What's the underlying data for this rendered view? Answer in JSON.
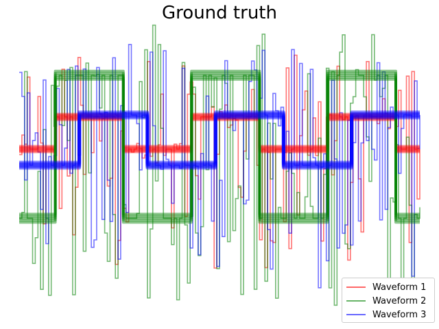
{
  "chart_data": {
    "type": "line",
    "title": "Ground truth",
    "xlabel": "",
    "ylabel": "",
    "axes_visible": false,
    "grid": false,
    "legend_position": "lower-right",
    "x_range": [
      0,
      1
    ],
    "y_range": [
      -1.6,
      1.6
    ],
    "series": [
      {
        "name": "Waveform 1",
        "color": "#ff0000",
        "shape": "square",
        "base_steps": [
          [
            0.0,
            0.17
          ],
          [
            0.09,
            0.51
          ],
          [
            0.26,
            0.17
          ],
          [
            0.43,
            0.51
          ],
          [
            0.6,
            0.17
          ],
          [
            0.77,
            0.51
          ],
          [
            0.94,
            0.17
          ]
        ],
        "base_range": [
          0.17,
          0.51
        ],
        "noisy_spike_range": [
          -1.1,
          1.2
        ]
      },
      {
        "name": "Waveform 2",
        "color": "#008000",
        "shape": "square",
        "base_steps": [
          [
            0.0,
            -0.56
          ],
          [
            0.09,
            0.95
          ],
          [
            0.26,
            -0.56
          ],
          [
            0.43,
            0.95
          ],
          [
            0.6,
            -0.56
          ],
          [
            0.77,
            0.95
          ],
          [
            0.94,
            -0.56
          ]
        ],
        "base_range": [
          -0.56,
          0.95
        ],
        "noisy_spike_range": [
          -1.5,
          1.5
        ]
      },
      {
        "name": "Waveform 3",
        "color": "#0000ff",
        "shape": "square",
        "base_steps": [
          [
            0.0,
            0.0
          ],
          [
            0.15,
            0.53
          ],
          [
            0.32,
            0.0
          ],
          [
            0.49,
            0.53
          ],
          [
            0.66,
            0.0
          ],
          [
            0.83,
            0.53
          ],
          [
            1.0,
            0.53
          ]
        ],
        "base_range": [
          0.0,
          0.53
        ],
        "noisy_spike_range": [
          -1.3,
          1.3
        ]
      }
    ]
  }
}
